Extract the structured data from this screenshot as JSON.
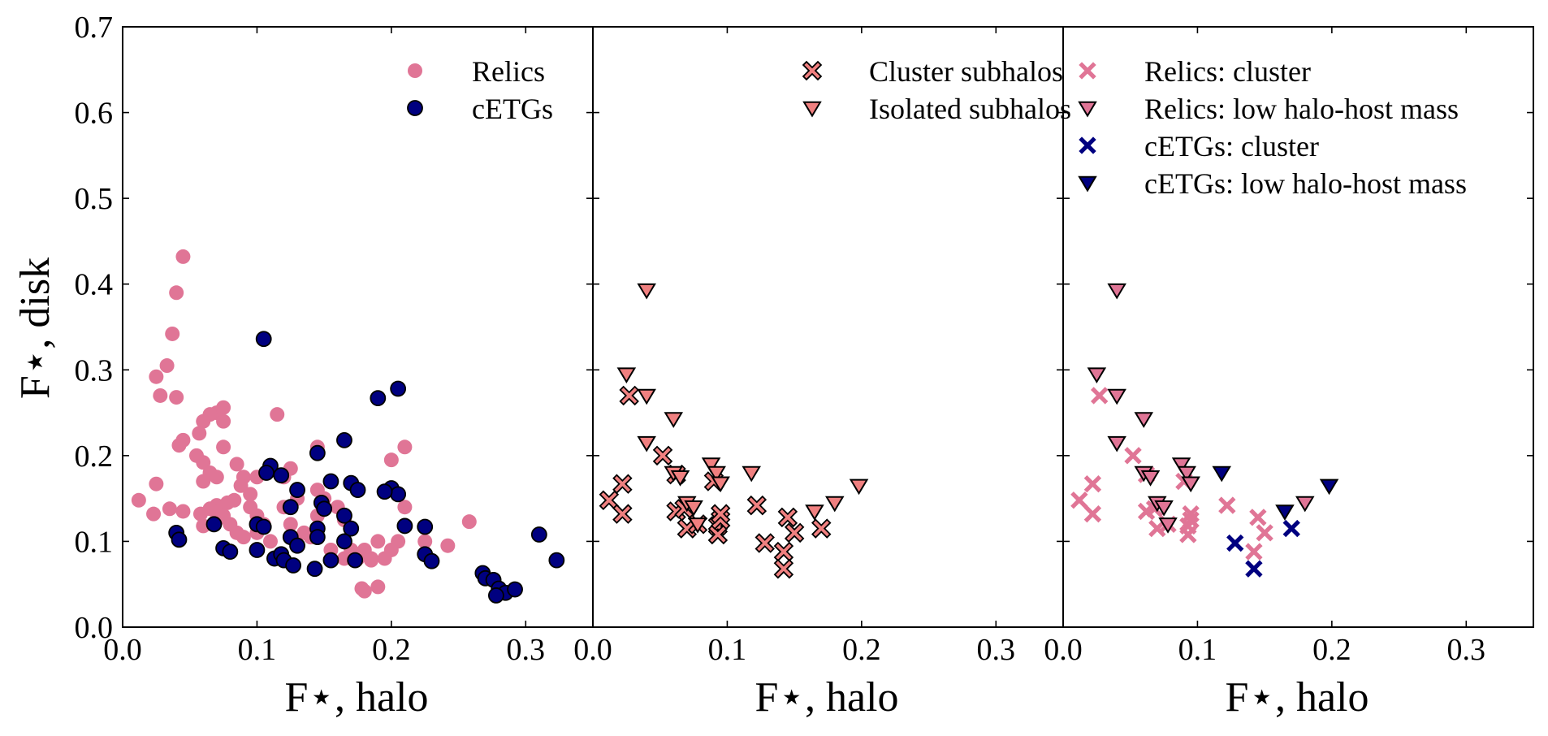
{
  "chart_data": {
    "type": "scatter",
    "title": "",
    "ylabel": "F⋆, disk",
    "ylim": [
      0,
      0.7
    ],
    "xlim": [
      0,
      0.35
    ],
    "yticks": [
      "0.0",
      "0.1",
      "0.2",
      "0.3",
      "0.4",
      "0.5",
      "0.6",
      "0.7"
    ],
    "xticks": [
      "0.0",
      "0.1",
      "0.2",
      "0.3"
    ],
    "colors": {
      "relic": "#e07596",
      "salmon": "#f08080",
      "navy": "#000080",
      "edge": "#000000"
    },
    "panels": [
      {
        "xlabel": "F⋆, halo",
        "legend": [
          {
            "label": "Relics",
            "marker": "circle",
            "fill": "#e07596",
            "edge": "none"
          },
          {
            "label": "cETGs",
            "marker": "circle",
            "fill": "#000080",
            "edge": "#000000"
          }
        ],
        "series": [
          {
            "name": "Relics",
            "marker": "circle",
            "fill": "#e07596",
            "edge": "none",
            "points": [
              [
                0.045,
                0.432
              ],
              [
                0.04,
                0.39
              ],
              [
                0.037,
                0.342
              ],
              [
                0.033,
                0.305
              ],
              [
                0.025,
                0.292
              ],
              [
                0.028,
                0.27
              ],
              [
                0.04,
                0.268
              ],
              [
                0.075,
                0.256
              ],
              [
                0.07,
                0.25
              ],
              [
                0.065,
                0.248
              ],
              [
                0.06,
                0.24
              ],
              [
                0.075,
                0.24
              ],
              [
                0.057,
                0.226
              ],
              [
                0.045,
                0.218
              ],
              [
                0.042,
                0.212
              ],
              [
                0.055,
                0.2
              ],
              [
                0.075,
                0.21
              ],
              [
                0.06,
                0.192
              ],
              [
                0.085,
                0.19
              ],
              [
                0.065,
                0.18
              ],
              [
                0.07,
                0.175
              ],
              [
                0.09,
                0.175
              ],
              [
                0.1,
                0.175
              ],
              [
                0.088,
                0.165
              ],
              [
                0.095,
                0.155
              ],
              [
                0.083,
                0.148
              ],
              [
                0.078,
                0.145
              ],
              [
                0.07,
                0.142
              ],
              [
                0.065,
                0.138
              ],
              [
                0.058,
                0.132
              ],
              [
                0.06,
                0.118
              ],
              [
                0.07,
                0.125
              ],
              [
                0.075,
                0.13
              ],
              [
                0.08,
                0.12
              ],
              [
                0.085,
                0.11
              ],
              [
                0.09,
                0.105
              ],
              [
                0.1,
                0.11
              ],
              [
                0.105,
                0.12
              ],
              [
                0.11,
                0.1
              ],
              [
                0.1,
                0.13
              ],
              [
                0.095,
                0.14
              ],
              [
                0.115,
                0.248
              ],
              [
                0.12,
                0.175
              ],
              [
                0.125,
                0.185
              ],
              [
                0.13,
                0.15
              ],
              [
                0.12,
                0.14
              ],
              [
                0.125,
                0.12
              ],
              [
                0.135,
                0.11
              ],
              [
                0.14,
                0.105
              ],
              [
                0.145,
                0.13
              ],
              [
                0.145,
                0.16
              ],
              [
                0.145,
                0.21
              ],
              [
                0.15,
                0.15
              ],
              [
                0.16,
                0.14
              ],
              [
                0.155,
                0.09
              ],
              [
                0.165,
                0.08
              ],
              [
                0.17,
                0.09
              ],
              [
                0.175,
                0.08
              ],
              [
                0.18,
                0.09
              ],
              [
                0.185,
                0.08
              ],
              [
                0.19,
                0.1
              ],
              [
                0.195,
                0.08
              ],
              [
                0.2,
                0.09
              ],
              [
                0.205,
                0.1
              ],
              [
                0.2,
                0.195
              ],
              [
                0.21,
                0.14
              ],
              [
                0.21,
                0.21
              ],
              [
                0.225,
                0.1
              ],
              [
                0.242,
                0.095
              ],
              [
                0.258,
                0.123
              ],
              [
                0.178,
                0.045
              ],
              [
                0.18,
                0.042
              ],
              [
                0.19,
                0.047
              ],
              [
                0.185,
                0.078
              ],
              [
                0.012,
                0.148
              ],
              [
                0.025,
                0.167
              ],
              [
                0.023,
                0.132
              ],
              [
                0.035,
                0.138
              ],
              [
                0.045,
                0.135
              ],
              [
                0.06,
                0.17
              ],
              [
                0.165,
                0.125
              ]
            ]
          },
          {
            "name": "cETGs",
            "marker": "circle",
            "fill": "#000080",
            "edge": "#000000",
            "points": [
              [
                0.105,
                0.336
              ],
              [
                0.205,
                0.278
              ],
              [
                0.19,
                0.267
              ],
              [
                0.165,
                0.218
              ],
              [
                0.145,
                0.203
              ],
              [
                0.11,
                0.188
              ],
              [
                0.107,
                0.18
              ],
              [
                0.118,
                0.177
              ],
              [
                0.155,
                0.17
              ],
              [
                0.17,
                0.168
              ],
              [
                0.175,
                0.16
              ],
              [
                0.2,
                0.162
              ],
              [
                0.205,
                0.155
              ],
              [
                0.195,
                0.158
              ],
              [
                0.13,
                0.16
              ],
              [
                0.125,
                0.14
              ],
              [
                0.148,
                0.145
              ],
              [
                0.15,
                0.138
              ],
              [
                0.165,
                0.13
              ],
              [
                0.21,
                0.118
              ],
              [
                0.225,
                0.117
              ],
              [
                0.068,
                0.12
              ],
              [
                0.1,
                0.12
              ],
              [
                0.105,
                0.117
              ],
              [
                0.145,
                0.115
              ],
              [
                0.145,
                0.105
              ],
              [
                0.125,
                0.105
              ],
              [
                0.13,
                0.095
              ],
              [
                0.17,
                0.115
              ],
              [
                0.165,
                0.1
              ],
              [
                0.075,
                0.092
              ],
              [
                0.08,
                0.088
              ],
              [
                0.1,
                0.09
              ],
              [
                0.113,
                0.08
              ],
              [
                0.118,
                0.085
              ],
              [
                0.12,
                0.078
              ],
              [
                0.127,
                0.072
              ],
              [
                0.143,
                0.068
              ],
              [
                0.155,
                0.078
              ],
              [
                0.173,
                0.078
              ],
              [
                0.04,
                0.11
              ],
              [
                0.042,
                0.102
              ],
              [
                0.225,
                0.085
              ],
              [
                0.23,
                0.077
              ],
              [
                0.268,
                0.063
              ],
              [
                0.27,
                0.057
              ],
              [
                0.276,
                0.055
              ],
              [
                0.28,
                0.045
              ],
              [
                0.285,
                0.04
              ],
              [
                0.278,
                0.037
              ],
              [
                0.292,
                0.044
              ],
              [
                0.31,
                0.108
              ],
              [
                0.323,
                0.078
              ]
            ]
          }
        ]
      },
      {
        "xlabel": "F⋆, halo",
        "legend": [
          {
            "label": "Cluster subhalos",
            "marker": "x",
            "fill": "#f08080",
            "edge": "#000000"
          },
          {
            "label": "Isolated subhalos",
            "marker": "tri",
            "fill": "#f08080",
            "edge": "#000000"
          }
        ],
        "series": [
          {
            "name": "Cluster subhalos",
            "marker": "x",
            "fill": "#f08080",
            "edge": "#000000",
            "points": [
              [
                0.012,
                0.148
              ],
              [
                0.022,
                0.167
              ],
              [
                0.022,
                0.132
              ],
              [
                0.027,
                0.27
              ],
              [
                0.052,
                0.2
              ],
              [
                0.062,
                0.178
              ],
              [
                0.062,
                0.135
              ],
              [
                0.068,
                0.138
              ],
              [
                0.07,
                0.115
              ],
              [
                0.078,
                0.12
              ],
              [
                0.09,
                0.17
              ],
              [
                0.093,
                0.118
              ],
              [
                0.093,
                0.108
              ],
              [
                0.095,
                0.125
              ],
              [
                0.095,
                0.132
              ],
              [
                0.122,
                0.142
              ],
              [
                0.128,
                0.098
              ],
              [
                0.142,
                0.088
              ],
              [
                0.142,
                0.068
              ],
              [
                0.145,
                0.128
              ],
              [
                0.15,
                0.11
              ],
              [
                0.17,
                0.115
              ]
            ]
          },
          {
            "name": "Isolated subhalos",
            "marker": "tri",
            "fill": "#f08080",
            "edge": "#000000",
            "points": [
              [
                0.04,
                0.393
              ],
              [
                0.025,
                0.295
              ],
              [
                0.04,
                0.27
              ],
              [
                0.04,
                0.215
              ],
              [
                0.06,
                0.243
              ],
              [
                0.06,
                0.18
              ],
              [
                0.065,
                0.175
              ],
              [
                0.07,
                0.145
              ],
              [
                0.075,
                0.14
              ],
              [
                0.078,
                0.12
              ],
              [
                0.088,
                0.19
              ],
              [
                0.092,
                0.18
              ],
              [
                0.095,
                0.168
              ],
              [
                0.118,
                0.18
              ],
              [
                0.165,
                0.135
              ],
              [
                0.18,
                0.145
              ],
              [
                0.198,
                0.165
              ]
            ]
          }
        ]
      },
      {
        "xlabel": "F⋆, halo",
        "legend": [
          {
            "label": "Relics: cluster",
            "marker": "x",
            "fill": "#e07596",
            "edge": "none"
          },
          {
            "label": "Relics: low halo-host mass",
            "marker": "tri",
            "fill": "#e07596",
            "edge": "#000000"
          },
          {
            "label": "cETGs: cluster",
            "marker": "x",
            "fill": "#000080",
            "edge": "none"
          },
          {
            "label": "cETGs: low halo-host mass",
            "marker": "tri",
            "fill": "#000080",
            "edge": "#000000"
          }
        ],
        "series": [
          {
            "name": "Relics: cluster",
            "marker": "x",
            "fill": "#e07596",
            "edge": "none",
            "points": [
              [
                0.012,
                0.148
              ],
              [
                0.022,
                0.167
              ],
              [
                0.022,
                0.132
              ],
              [
                0.027,
                0.27
              ],
              [
                0.052,
                0.2
              ],
              [
                0.062,
                0.178
              ],
              [
                0.062,
                0.135
              ],
              [
                0.068,
                0.138
              ],
              [
                0.07,
                0.115
              ],
              [
                0.078,
                0.12
              ],
              [
                0.09,
                0.17
              ],
              [
                0.093,
                0.118
              ],
              [
                0.093,
                0.108
              ],
              [
                0.095,
                0.125
              ],
              [
                0.095,
                0.132
              ],
              [
                0.122,
                0.142
              ],
              [
                0.142,
                0.088
              ],
              [
                0.145,
                0.128
              ],
              [
                0.15,
                0.11
              ]
            ]
          },
          {
            "name": "Relics: low halo-host mass",
            "marker": "tri",
            "fill": "#e07596",
            "edge": "#000000",
            "points": [
              [
                0.04,
                0.393
              ],
              [
                0.025,
                0.295
              ],
              [
                0.04,
                0.27
              ],
              [
                0.04,
                0.215
              ],
              [
                0.06,
                0.243
              ],
              [
                0.06,
                0.18
              ],
              [
                0.065,
                0.175
              ],
              [
                0.07,
                0.145
              ],
              [
                0.075,
                0.14
              ],
              [
                0.078,
                0.12
              ],
              [
                0.088,
                0.19
              ],
              [
                0.092,
                0.18
              ],
              [
                0.095,
                0.168
              ],
              [
                0.18,
                0.145
              ]
            ]
          },
          {
            "name": "cETGs: cluster",
            "marker": "x",
            "fill": "#000080",
            "edge": "none",
            "points": [
              [
                0.128,
                0.098
              ],
              [
                0.142,
                0.068
              ],
              [
                0.17,
                0.115
              ]
            ]
          },
          {
            "name": "cETGs: low halo-host mass",
            "marker": "tri",
            "fill": "#000080",
            "edge": "#000000",
            "points": [
              [
                0.118,
                0.18
              ],
              [
                0.165,
                0.135
              ],
              [
                0.198,
                0.165
              ]
            ]
          }
        ]
      }
    ]
  }
}
